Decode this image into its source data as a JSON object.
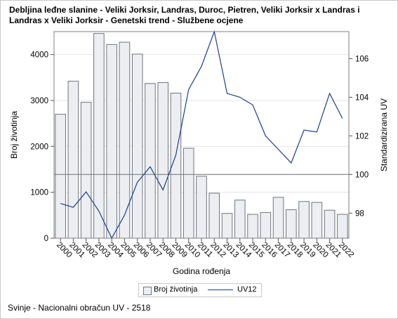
{
  "chart_data": {
    "type": "bar+line",
    "title": "Debljina leđne slanine - Veliki Jorksir, Landras, Duroc, Pietren, Veliki Jorksir x Landras i Landras x Veliki Jorksir - Genetski trend - Službene ocjene",
    "xlabel": "Godina rođenja",
    "ylabel_left": "Broj životinja",
    "ylabel_right": "Standardizirana UV",
    "categories": [
      "2000",
      "2001",
      "2002",
      "2003",
      "2004",
      "2005",
      "2006",
      "2007",
      "2008",
      "2009",
      "2010",
      "2011",
      "2012",
      "2013",
      "2014",
      "2015",
      "2016",
      "2017",
      "2018",
      "2019",
      "2020",
      "2021",
      "2022"
    ],
    "series": [
      {
        "name": "Broj životinja",
        "type": "bar",
        "axis": "left",
        "values": [
          2700,
          3420,
          2960,
          4460,
          4220,
          4270,
          4010,
          3370,
          3390,
          3160,
          1960,
          1350,
          980,
          540,
          830,
          520,
          560,
          890,
          620,
          800,
          780,
          610,
          520
        ]
      },
      {
        "name": "UV12",
        "type": "line",
        "axis": "right",
        "values": [
          98.5,
          98.3,
          99.1,
          98.1,
          96.7,
          97.9,
          99.6,
          100.4,
          99.2,
          101.0,
          104.4,
          105.6,
          107.4,
          104.2,
          104.0,
          103.6,
          102.0,
          101.3,
          100.6,
          102.3,
          102.2,
          104.2,
          102.9
        ]
      }
    ],
    "ylim_left": [
      0,
      4500
    ],
    "yticks_left": [
      0,
      1000,
      2000,
      3000,
      4000
    ],
    "ylim_right": [
      96.7,
      107.4
    ],
    "yticks_right": [
      98,
      100,
      102,
      104,
      106
    ],
    "reference_line": 100,
    "grid": true,
    "legend_position": "bottom",
    "colors": {
      "bar_fill": "#eceef2",
      "bar_stroke": "#70757f",
      "line": "#1a3f8f",
      "grid": "#e6e6e6",
      "reference": "#7f7f7f"
    }
  },
  "legend": {
    "bars_label": "Broj životinja",
    "line_label": "UV12"
  },
  "footnote": "Svinje - Nacionalni obračun UV - 2518"
}
